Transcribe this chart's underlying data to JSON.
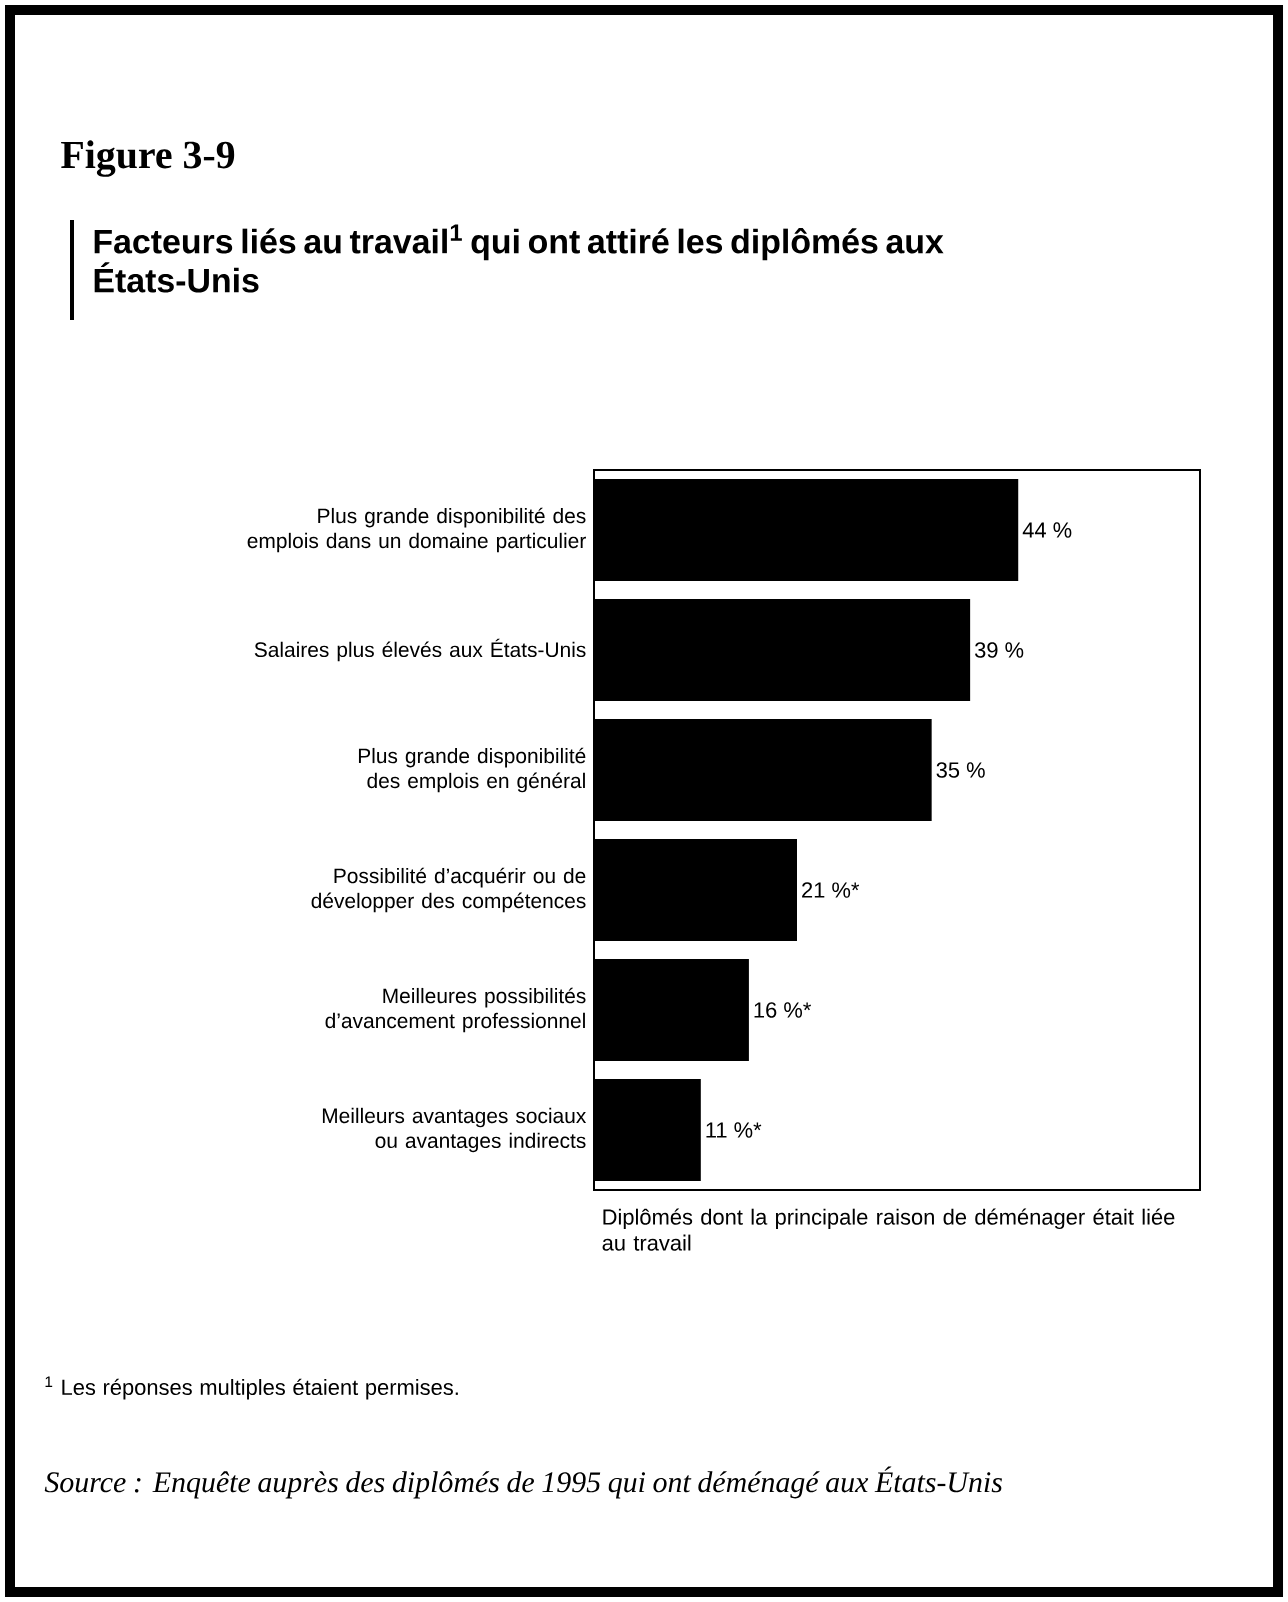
{
  "chart_data": {
    "type": "bar",
    "orientation": "horizontal",
    "title": "Figure 3-9",
    "subtitle": "Facteurs liés au travail$^{1}$ qui ont attiré les diplômés aux États-Unis",
    "xlabel": "Diplômés dont la principale raison de déménager était liée au travail",
    "categories": [
      "Plus grande disponibilité des emplois dans un domaine particulier",
      "Salaires plus élevés aux États-Unis",
      "Plus grande disponibilité des emplois en général",
      "Possibilité d’acquérir ou de développer des compétences",
      "Meilleures possibilités d’avancement professionnel",
      "Meilleurs avantages sociaux ou avantages indirects"
    ],
    "values": [
      44,
      39,
      35,
      21,
      16,
      11
    ],
    "value_labels": [
      "44 %",
      "39 %",
      "35 %",
      "21 %*",
      "16 %*",
      "11 %*"
    ],
    "color": "#000000",
    "xlim": [
      0,
      63
    ],
    "tick_labels": "y",
    "annotations": [
      "$^{1}$ Les réponses multiples étaient permises.",
      "Source : Enquête auprès des diplômés de 1995 qui ont déménagé aux États-Unis"
    ]
  }
}
